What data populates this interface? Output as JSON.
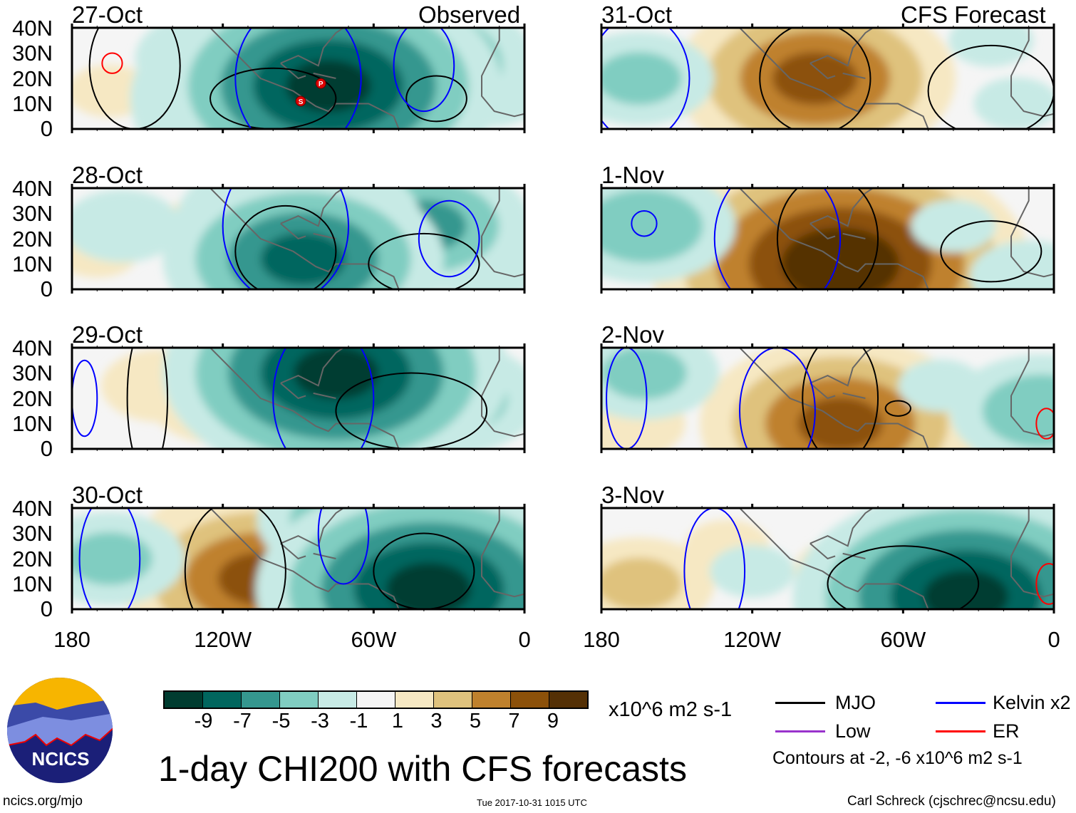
{
  "header": {
    "left_label": "Observed",
    "right_label": "CFS Forecast"
  },
  "lat_labels": [
    "40N",
    "30N",
    "20N",
    "10N",
    "0"
  ],
  "lon_labels": [
    "180",
    "120W",
    "60W",
    "0"
  ],
  "colors": {
    "-11": "#003c30",
    "-9": "#01665e",
    "-7": "#35978f",
    "-5": "#80cdc1",
    "-3": "#c7eae5",
    "0": "#f5f5f5",
    "3": "#f6e8c3",
    "5": "#dfc27d",
    "7": "#bf812d",
    "9": "#8c510a",
    "11": "#543005",
    "mjo": "#000000",
    "kelvin": "#0000ff",
    "low": "#9933cc",
    "er": "#ff0000",
    "coast": "#666666"
  },
  "colorbar": {
    "colors": [
      "#003c30",
      "#01665e",
      "#35978f",
      "#80cdc1",
      "#c7eae5",
      "#f5f5f5",
      "#f6e8c3",
      "#dfc27d",
      "#bf812d",
      "#8c510a",
      "#543005"
    ],
    "labels": [
      "-9",
      "-7",
      "-5",
      "-3",
      "-1",
      "1",
      "3",
      "5",
      "7",
      "9"
    ],
    "units": "x10^6 m2 s-1"
  },
  "legend": {
    "items": [
      {
        "label": "MJO",
        "color": "#000000"
      },
      {
        "label": "Kelvin x2",
        "color": "#0000ff"
      },
      {
        "label": "Low",
        "color": "#9933cc"
      },
      {
        "label": "ER",
        "color": "#ff0000"
      }
    ],
    "contours_note": "Contours at -2, -6 x10^6 m2 s-1"
  },
  "title": "1-day CHI200 with CFS forecasts",
  "logo_text": "NCICS",
  "footer": {
    "url": "ncics.org/mjo",
    "timestamp": "Tue 2017-10-31 1015 UTC",
    "author": "Carl Schreck (cjschrec@ncsu.edu)"
  },
  "chart_data": {
    "type": "heatmap",
    "variable": "CHI200 anomaly",
    "units": "x10^6 m2 s-1",
    "lon_range": [
      -180,
      0
    ],
    "lat_range": [
      0,
      40
    ],
    "panels": [
      {
        "date": "27-Oct",
        "anomalies": [
          [
            -165,
            15,
            2
          ],
          [
            -125,
            28,
            -4
          ],
          [
            -105,
            20,
            -3
          ],
          [
            -60,
            20,
            -3
          ],
          [
            -15,
            15,
            -3
          ],
          [
            -45,
            25,
            -7
          ],
          [
            -88,
            12,
            -10
          ],
          [
            -78,
            17,
            -10
          ]
        ],
        "contours": [
          [
            "mjo",
            -155,
            25,
            18,
            25
          ],
          [
            "mjo",
            -100,
            12,
            25,
            12
          ],
          [
            "mjo",
            -35,
            12,
            12,
            9
          ],
          [
            "kelvin",
            -90,
            20,
            25,
            30
          ],
          [
            "kelvin",
            -40,
            25,
            12,
            18
          ],
          [
            "er",
            -164,
            26,
            4,
            4
          ]
        ],
        "storms": [
          [
            "S",
            -89,
            11
          ],
          [
            "P",
            -81,
            18
          ]
        ]
      },
      {
        "date": "28-Oct",
        "anomalies": [
          [
            -130,
            25,
            2
          ],
          [
            -170,
            15,
            2
          ],
          [
            -60,
            10,
            2
          ],
          [
            -160,
            25,
            -3
          ],
          [
            -70,
            30,
            -3
          ],
          [
            -15,
            10,
            -3
          ],
          [
            -40,
            25,
            -6
          ],
          [
            -90,
            25,
            -7
          ],
          [
            -88,
            12,
            -8
          ]
        ],
        "contours": [
          [
            "mjo",
            -95,
            15,
            20,
            18
          ],
          [
            "mjo",
            -40,
            10,
            22,
            12
          ],
          [
            "kelvin",
            -95,
            25,
            25,
            30
          ],
          [
            "kelvin",
            -30,
            20,
            12,
            15
          ]
        ],
        "storms": []
      },
      {
        "date": "29-Oct",
        "anomalies": [
          [
            -120,
            20,
            4
          ],
          [
            -145,
            25,
            3
          ],
          [
            -100,
            15,
            2
          ],
          [
            -55,
            35,
            -3
          ],
          [
            -30,
            20,
            -5
          ],
          [
            -75,
            8,
            -7
          ],
          [
            -75,
            30,
            -10
          ]
        ],
        "contours": [
          [
            "mjo",
            -150,
            20,
            8,
            30
          ],
          [
            "mjo",
            -45,
            15,
            30,
            15
          ],
          [
            "kelvin",
            -80,
            20,
            20,
            30
          ],
          [
            "kelvin",
            -175,
            20,
            5,
            15
          ]
        ],
        "storms": []
      },
      {
        "date": "30-Oct",
        "anomalies": [
          [
            -85,
            20,
            3
          ],
          [
            -110,
            25,
            6
          ],
          [
            -105,
            12,
            8
          ],
          [
            -20,
            20,
            -2
          ],
          [
            -65,
            25,
            -3
          ],
          [
            -165,
            20,
            -4
          ],
          [
            -70,
            35,
            -5
          ],
          [
            -38,
            8,
            -10
          ]
        ],
        "contours": [
          [
            "mjo",
            -115,
            15,
            20,
            28
          ],
          [
            "mjo",
            -40,
            15,
            20,
            15
          ],
          [
            "kelvin",
            -165,
            20,
            12,
            25
          ],
          [
            "kelvin",
            -72,
            30,
            10,
            20
          ]
        ],
        "storms": []
      },
      {
        "date": "31-Oct",
        "anomalies": [
          [
            -125,
            25,
            2
          ],
          [
            -75,
            25,
            3
          ],
          [
            -100,
            30,
            6
          ],
          [
            -95,
            20,
            8
          ],
          [
            -25,
            35,
            -2
          ],
          [
            -15,
            10,
            -2
          ],
          [
            -165,
            20,
            -4
          ]
        ],
        "contours": [
          [
            "mjo",
            -95,
            20,
            22,
            22
          ],
          [
            "mjo",
            -25,
            15,
            25,
            18
          ],
          [
            "kelvin",
            -165,
            20,
            20,
            25
          ]
        ],
        "storms": []
      },
      {
        "date": "1-Nov",
        "anomalies": [
          [
            -60,
            20,
            2
          ],
          [
            -120,
            30,
            2
          ],
          [
            -95,
            30,
            5
          ],
          [
            -85,
            10,
            11
          ],
          [
            -40,
            25,
            -2
          ],
          [
            -10,
            5,
            -3
          ],
          [
            -163,
            25,
            -5
          ]
        ],
        "contours": [
          [
            "mjo",
            -90,
            20,
            20,
            25
          ],
          [
            "mjo",
            -25,
            15,
            20,
            12
          ],
          [
            "kelvin",
            -163,
            26,
            5,
            5
          ],
          [
            "kelvin",
            -110,
            20,
            25,
            30
          ]
        ],
        "storms": []
      },
      {
        "date": "2-Nov",
        "anomalies": [
          [
            -100,
            25,
            2
          ],
          [
            -170,
            10,
            3
          ],
          [
            -65,
            20,
            4
          ],
          [
            -85,
            10,
            8
          ],
          [
            -45,
            25,
            -2
          ],
          [
            -163,
            30,
            -4
          ],
          [
            -5,
            15,
            -5
          ]
        ],
        "contours": [
          [
            "mjo",
            -85,
            20,
            15,
            25
          ],
          [
            "mjo",
            -62,
            16,
            5,
            3
          ],
          [
            "kelvin",
            -110,
            15,
            15,
            25
          ],
          [
            "kelvin",
            -170,
            20,
            8,
            20
          ],
          [
            "er",
            -3,
            10,
            4,
            6
          ]
        ],
        "storms": []
      },
      {
        "date": "3-Nov",
        "anomalies": [
          [
            -60,
            25,
            2
          ],
          [
            -130,
            25,
            2
          ],
          [
            -80,
            15,
            3
          ],
          [
            -165,
            10,
            4
          ],
          [
            -120,
            15,
            -2
          ],
          [
            -5,
            20,
            -5
          ],
          [
            -35,
            5,
            -10
          ]
        ],
        "contours": [
          [
            "mjo",
            -60,
            10,
            30,
            15
          ],
          [
            "kelvin",
            -135,
            15,
            12,
            25
          ],
          [
            "er",
            -2,
            10,
            5,
            8
          ]
        ],
        "storms": []
      }
    ]
  }
}
